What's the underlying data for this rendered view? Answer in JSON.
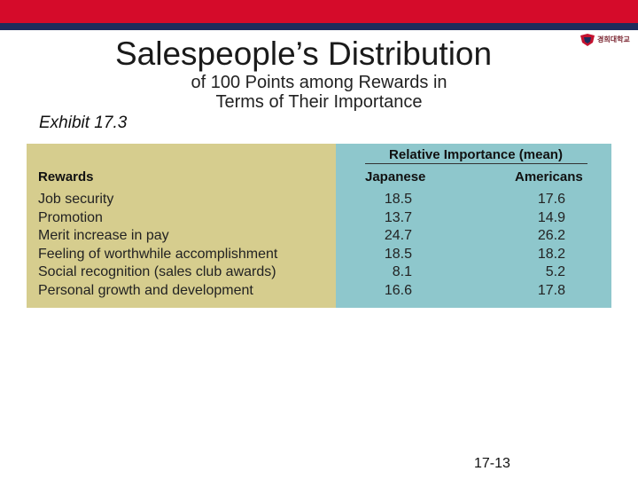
{
  "colors": {
    "top_bar": "#d50b2a",
    "top_bar_line": "#1e2c5c",
    "left_panel": "#d6cd8e",
    "right_panel": "#8ec7cc",
    "logo_red": "#c4122f",
    "logo_navy": "#1e2c5c"
  },
  "slide": {
    "title": "Salespeople’s Distribution",
    "subtitle": "of 100 Points among Rewards in Terms of Their Importance",
    "exhibit_label": "Exhibit 17.3",
    "page_number": "17-13",
    "logo_icon": "university-emblem-icon",
    "logo_text": "경희대학교"
  },
  "table": {
    "group_header": "Relative Importance (mean)",
    "columns": [
      "Rewards",
      "Japanese",
      "Americans"
    ],
    "rows": [
      {
        "label": "Job security",
        "japanese": "18.5",
        "americans": "17.6"
      },
      {
        "label": "Promotion",
        "japanese": "13.7",
        "americans": "14.9"
      },
      {
        "label": "Merit increase in pay",
        "japanese": "24.7",
        "americans": "26.2"
      },
      {
        "label": "Feeling of worthwhile accomplishment",
        "japanese": "18.5",
        "americans": "18.2"
      },
      {
        "label": "Social recognition (sales club awards)",
        "japanese": "8.1",
        "americans": "5.2"
      },
      {
        "label": "Personal growth and development",
        "japanese": "16.6",
        "americans": "17.8"
      }
    ]
  }
}
